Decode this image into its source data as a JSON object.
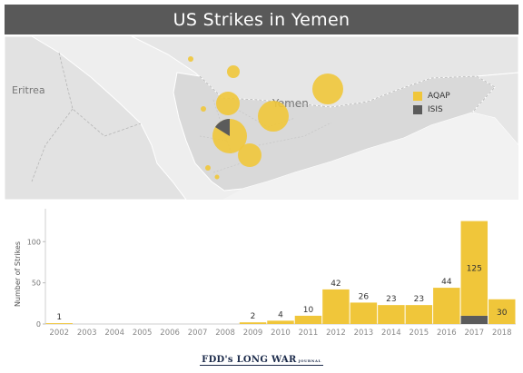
{
  "title": "US Strikes in Yemen",
  "map": {
    "labels": {
      "eritrea": "Eritrea",
      "yemen": "Yemen"
    },
    "legend": [
      {
        "name": "AQAP",
        "color": "#f0c63a"
      },
      {
        "name": "ISIS",
        "color": "#5b5b5b"
      }
    ]
  },
  "chart_data": {
    "type": "bar",
    "categories": [
      "2002",
      "2003",
      "2004",
      "2005",
      "2006",
      "2007",
      "2008",
      "2009",
      "2010",
      "2011",
      "2012",
      "2013",
      "2014",
      "2015",
      "2016",
      "2017",
      "2018"
    ],
    "series": [
      {
        "name": "AQAP",
        "values": [
          1,
          0,
          0,
          0,
          0,
          0,
          0,
          2,
          4,
          10,
          42,
          26,
          23,
          23,
          44,
          115,
          30
        ]
      },
      {
        "name": "ISIS",
        "values": [
          0,
          0,
          0,
          0,
          0,
          0,
          0,
          0,
          0,
          0,
          0,
          0,
          0,
          0,
          0,
          10,
          0
        ]
      }
    ],
    "totals": [
      1,
      null,
      null,
      null,
      null,
      null,
      null,
      2,
      4,
      10,
      42,
      26,
      23,
      23,
      44,
      125,
      30
    ],
    "total_labels": [
      "1",
      "",
      "",
      "",
      "",
      "",
      "",
      "2",
      "4",
      "10",
      "42",
      "26",
      "23",
      "23",
      "44",
      "125",
      "30"
    ],
    "ylabel": "Number of Strikes",
    "xlabel": "",
    "yticks": [
      "0",
      "50",
      "100"
    ],
    "ylim": [
      0,
      140
    ],
    "colors": {
      "AQAP": "#f0c63a",
      "ISIS": "#5b5b5b"
    }
  },
  "footer": {
    "logo_main": "FDD's LONG WAR",
    "logo_sub": "JOURNAL"
  }
}
